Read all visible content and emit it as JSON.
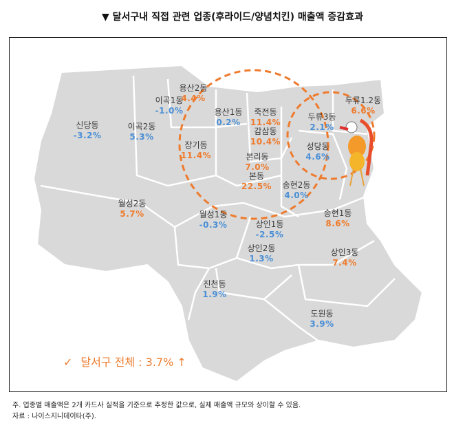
{
  "title": "▼ 달서구내 직접 관련 업종(후라이드/양념치킨) 매출액 증감효과",
  "dongs": [
    {
      "name": "용산2동",
      "value": "4.4%",
      "sign": "pos"
    },
    {
      "name": "이곡1동",
      "value": "-1.0%",
      "sign": "neg"
    },
    {
      "name": "용산1동",
      "value": "0.2%",
      "sign": "neg"
    },
    {
      "name": "죽전동",
      "value": "11.4%",
      "sign": "pos"
    },
    {
      "name": "두류3동",
      "value": "2.1%",
      "sign": "neg"
    },
    {
      "name": "두류1.2동",
      "value": "6.6%",
      "sign": "pos"
    },
    {
      "name": "신당동",
      "value": "-3.2%",
      "sign": "neg"
    },
    {
      "name": "이곡2동",
      "value": "5.3%",
      "sign": "neg"
    },
    {
      "name": "감삼동",
      "value": "10.4%",
      "sign": "pos"
    },
    {
      "name": "성당동",
      "value": "4.6%",
      "sign": "neg"
    },
    {
      "name": "장기동",
      "value": "11.4%",
      "sign": "pos"
    },
    {
      "name": "본리동",
      "value": "7.0%",
      "sign": "pos"
    },
    {
      "name": "본동",
      "value": "22.5%",
      "sign": "pos"
    },
    {
      "name": "송현2동",
      "value": "4.0%",
      "sign": "neg"
    },
    {
      "name": "월성2동",
      "value": "5.7%",
      "sign": "pos"
    },
    {
      "name": "월성1동",
      "value": "-0.3%",
      "sign": "neg"
    },
    {
      "name": "상인1동",
      "value": "-2.5%",
      "sign": "neg"
    },
    {
      "name": "송현1동",
      "value": "8.6%",
      "sign": "pos"
    },
    {
      "name": "상인2동",
      "value": "1.3%",
      "sign": "neg"
    },
    {
      "name": "상인3동",
      "value": "7.4%",
      "sign": "pos"
    },
    {
      "name": "진천동",
      "value": "1.9%",
      "sign": "neg"
    },
    {
      "name": "도원동",
      "value": "3.9%",
      "sign": "neg"
    }
  ],
  "total": {
    "check": "✓",
    "label": "달서구 전체 : 3.7% ↑"
  },
  "notes": [
    "주. 업종별 매출액은 2개 카드사 실적을 기준으로 추정한 값으로, 실제 매출액 규모와 상이할 수 있음.",
    "자료 : 나이스지니데이타(주)."
  ],
  "colors": {
    "positive": "#ee7b2d",
    "negative": "#4a8fd6",
    "district_fill": "#d9d9d9",
    "highlight_circle": "#ee7b2d"
  }
}
